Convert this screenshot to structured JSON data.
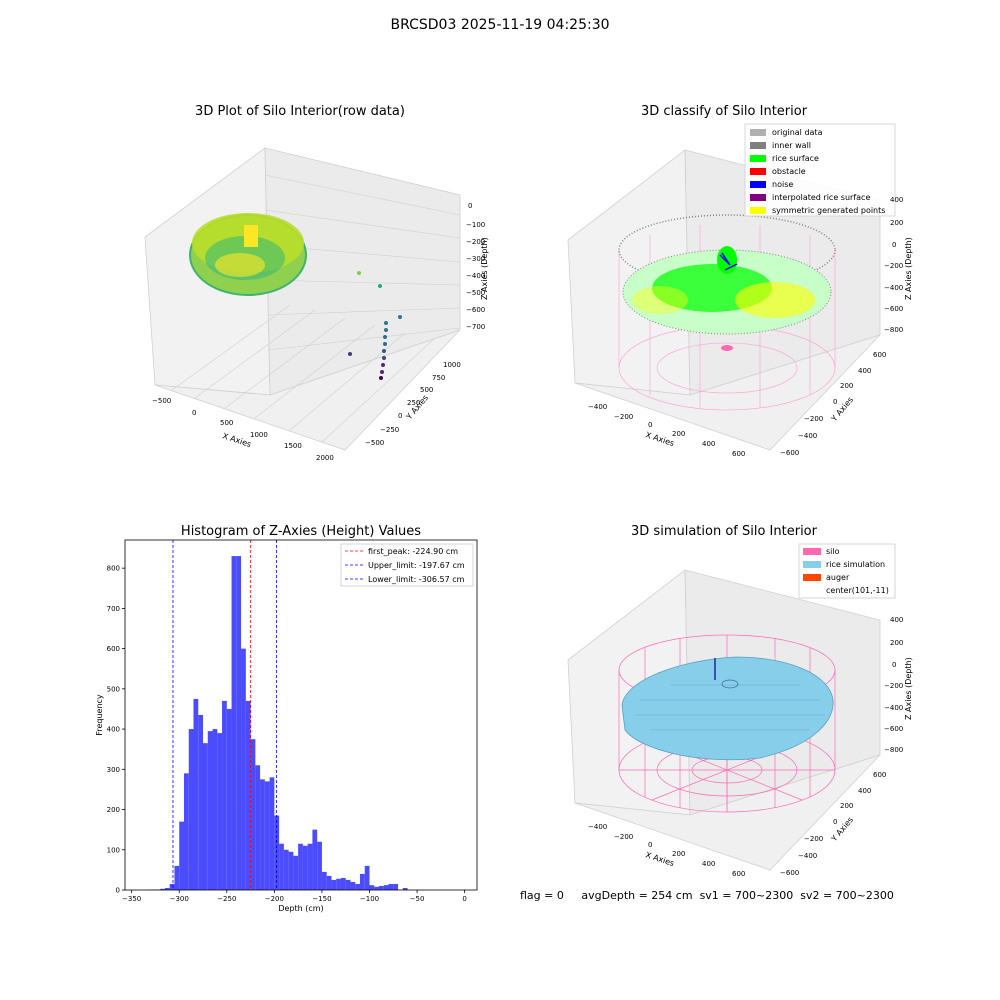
{
  "figure": {
    "suptitle": "BRCSD03 2025-11-19 04:25:30"
  },
  "status": {
    "flag": "flag = 0",
    "avg_depth": "avgDepth = 254 cm",
    "sv1": "sv1 = 700~2300",
    "sv2": "sv2 = 700~2300"
  },
  "colors": {
    "bar": "#4b4bff",
    "peak_line": "#ff0000",
    "limit_line": "#0000ff",
    "silo": "#ff69b4",
    "rice_simulation": "#87ceeb",
    "auger": "#ff4500",
    "original_data": "#b0b0b0",
    "inner_wall": "#808080",
    "rice_surface": "#00ff00",
    "obstacle": "#ff0000",
    "noise": "#0000ff",
    "interpolated_rice_surface": "#800080",
    "symmetric_generated_points": "#ffff00"
  },
  "panels": {
    "raw": {
      "title": "3D Plot of Silo Interior(row data)",
      "xlabel": "X Axies",
      "ylabel": "Y Axies",
      "zlabel": "Z Axies (Depth)",
      "xticks": [
        "−500",
        "0",
        "500",
        "1000",
        "1500",
        "2000"
      ],
      "yticks": [
        "−500",
        "−250",
        "0",
        "250",
        "500",
        "750",
        "1000"
      ],
      "zticks": [
        "0",
        "−100",
        "−200",
        "−300",
        "−400",
        "−500",
        "−600",
        "−700"
      ]
    },
    "classify": {
      "title": "3D classify of Silo Interior",
      "xlabel": "X Axies",
      "ylabel": "Y Axies",
      "zlabel": "Z Axies (Depth)",
      "xticks": [
        "−400",
        "−200",
        "0",
        "200",
        "400",
        "600"
      ],
      "yticks": [
        "−600",
        "−400",
        "−200",
        "0",
        "200",
        "400",
        "600"
      ],
      "zticks": [
        "400",
        "200",
        "0",
        "−200",
        "−400",
        "−600",
        "−800"
      ],
      "legend": [
        {
          "label": "original data",
          "color": "#b0b0b0"
        },
        {
          "label": "inner wall",
          "color": "#808080"
        },
        {
          "label": "rice surface",
          "color": "#00ff00"
        },
        {
          "label": "obstacle",
          "color": "#ff0000"
        },
        {
          "label": "noise",
          "color": "#0000ff"
        },
        {
          "label": "interpolated rice surface",
          "color": "#800080"
        },
        {
          "label": "symmetric generated points",
          "color": "#ffff00"
        }
      ]
    },
    "simulation": {
      "title": "3D simulation of Silo Interior",
      "xlabel": "X Axies",
      "ylabel": "Y Axies",
      "zlabel": "Z Axies (Depth)",
      "xticks": [
        "−400",
        "−200",
        "0",
        "200",
        "400",
        "600"
      ],
      "yticks": [
        "−600",
        "−400",
        "−200",
        "0",
        "200",
        "400",
        "600"
      ],
      "zticks": [
        "400",
        "200",
        "0",
        "−200",
        "−400",
        "−600",
        "−800"
      ],
      "legend": [
        {
          "label": "silo",
          "color": "#ff69b4"
        },
        {
          "label": "rice simulation",
          "color": "#87ceeb"
        },
        {
          "label": "auger",
          "color": "#ff4500"
        },
        {
          "label": "center(101,-11)",
          "color": ""
        }
      ]
    }
  },
  "chart_data": [
    {
      "type": "bar",
      "title": "Histogram of Z-Axies (Height) Values",
      "xlabel": "Depth (cm)",
      "ylabel": "Frequency",
      "xlim": [
        -357,
        13
      ],
      "ylim": [
        0,
        870
      ],
      "xticks": [
        -350,
        -300,
        -250,
        -200,
        -150,
        -100,
        -50,
        0
      ],
      "yticks": [
        0,
        100,
        200,
        300,
        400,
        500,
        600,
        700,
        800
      ],
      "bin_width": 5,
      "bin_starts": [
        -330,
        -325,
        -320,
        -315,
        -310,
        -305,
        -300,
        -295,
        -290,
        -285,
        -280,
        -275,
        -270,
        -265,
        -260,
        -255,
        -250,
        -245,
        -240,
        -235,
        -230,
        -225,
        -220,
        -215,
        -210,
        -205,
        -200,
        -195,
        -190,
        -185,
        -180,
        -175,
        -170,
        -165,
        -160,
        -155,
        -150,
        -145,
        -140,
        -135,
        -130,
        -125,
        -120,
        -115,
        -110,
        -105,
        -100,
        -95,
        -90,
        -85,
        -80,
        -75,
        -70,
        -65,
        -60,
        -55,
        -50,
        -45,
        -40,
        -35,
        -30,
        -25,
        -20,
        -15,
        -10,
        -5
      ],
      "values": [
        1,
        1,
        3,
        5,
        15,
        60,
        170,
        290,
        400,
        475,
        435,
        365,
        395,
        400,
        390,
        470,
        450,
        830,
        830,
        600,
        470,
        375,
        310,
        275,
        270,
        280,
        185,
        115,
        100,
        95,
        85,
        115,
        110,
        115,
        150,
        120,
        45,
        35,
        25,
        28,
        30,
        25,
        20,
        15,
        40,
        60,
        12,
        8,
        10,
        12,
        15,
        15,
        0,
        5,
        0,
        0,
        0,
        0,
        0,
        0,
        0,
        0,
        0,
        0,
        0,
        0
      ],
      "annotations": [
        {
          "label": "first_peak: -224.90 cm",
          "x": -224.9,
          "color": "#ff0000"
        },
        {
          "label": "Upper_limit: -197.67 cm",
          "x": -197.67,
          "color": "#0000ff"
        },
        {
          "label": "Lower_limit: -306.57 cm",
          "x": -306.57,
          "color": "#0000ff"
        }
      ],
      "legend_position": "upper right",
      "grid": false
    }
  ]
}
